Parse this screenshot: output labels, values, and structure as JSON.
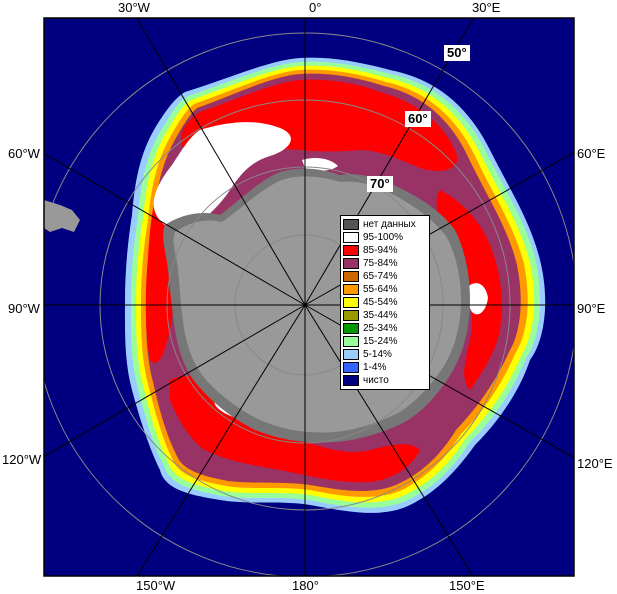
{
  "map": {
    "edge_labels": {
      "top": [
        "30°W",
        "0°",
        "30°E"
      ],
      "left": [
        "60°W",
        "90°W",
        "120°W"
      ],
      "right": [
        "60°E",
        "90°E",
        "120°E"
      ],
      "bottom": [
        "150°W",
        "180°",
        "150°E"
      ]
    },
    "lat_labels": [
      "50°",
      "60°",
      "70°"
    ],
    "legend": [
      {
        "label": "нет данных",
        "color": "#555555"
      },
      {
        "label": "95-100%",
        "color": "#ffffff"
      },
      {
        "label": "85-94%",
        "color": "#ff0000"
      },
      {
        "label": "75-84%",
        "color": "#993366"
      },
      {
        "label": "65-74%",
        "color": "#cc6600"
      },
      {
        "label": "55-64%",
        "color": "#ff9900"
      },
      {
        "label": "45-54%",
        "color": "#ffff00"
      },
      {
        "label": "35-44%",
        "color": "#999900"
      },
      {
        "label": "25-34%",
        "color": "#009900"
      },
      {
        "label": "15-24%",
        "color": "#99ff99"
      },
      {
        "label": "5-14%",
        "color": "#99ccff"
      },
      {
        "label": "1-4%",
        "color": "#3366ff"
      },
      {
        "label": "чисто",
        "color": "#000080"
      }
    ],
    "colors": {
      "ocean": "#000080",
      "land": "#999999",
      "land_dark": "#555555",
      "grid": "#888888"
    }
  }
}
